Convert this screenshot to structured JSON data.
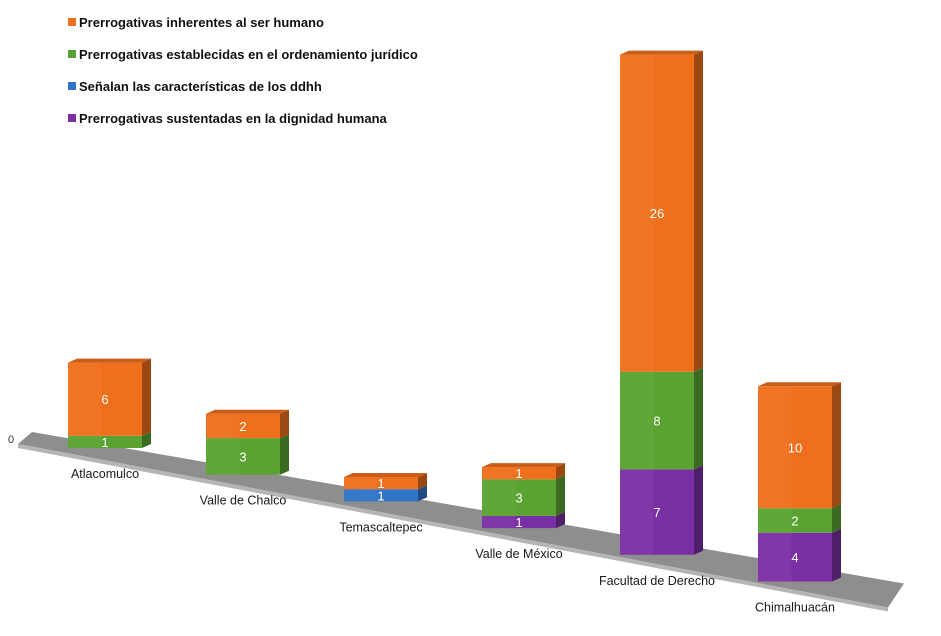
{
  "chart_data": {
    "type": "bar",
    "stacked": true,
    "three_d": true,
    "categories": [
      "Atlacomulco",
      "Valle de Chalco",
      "Temascaltepec",
      "Valle de México",
      "Facultad de Derecho",
      "Chimalhuacán"
    ],
    "series": [
      {
        "name": "Prerrogativas sustentadas en la dignidad humana",
        "color": "#7b2fa5",
        "values": [
          0,
          0,
          0,
          1,
          7,
          4
        ]
      },
      {
        "name": "Señalan  las características de los ddhh",
        "color": "#2f74c7",
        "values": [
          0,
          0,
          1,
          0,
          0,
          0
        ]
      },
      {
        "name": "Prerrogativas establecidas en el ordenamiento jurídico",
        "color": "#5aa332",
        "values": [
          1,
          3,
          0,
          3,
          8,
          2
        ]
      },
      {
        "name": "Prerrogativas inherentes al ser humano",
        "color": "#ee6f1c",
        "values": [
          6,
          2,
          1,
          1,
          26,
          10
        ]
      }
    ],
    "axis_zero_label": "0",
    "legend_position": "top-left",
    "grid": false
  }
}
